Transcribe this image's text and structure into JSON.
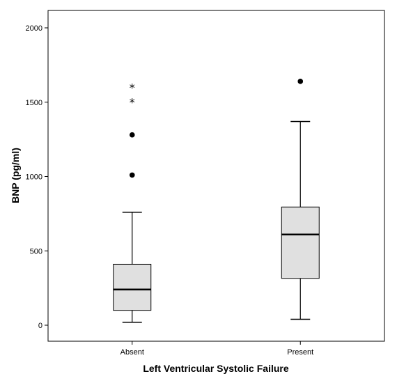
{
  "chart_data": {
    "type": "box",
    "xlabel": "Left Ventricular Systolic Failure",
    "ylabel": "BNP (pg/ml)",
    "ylim": [
      -120,
      2125
    ],
    "yticks": [
      0,
      500,
      1000,
      1500,
      2000
    ],
    "grid": false,
    "categories": [
      "Absent",
      "Present"
    ],
    "boxes": [
      {
        "category": "Absent",
        "whisker_low": 20,
        "q1": 100,
        "median": 240,
        "q3": 410,
        "whisker_high": 760,
        "outliers": [
          1010,
          1280
        ],
        "extremes": [
          1510,
          1610
        ]
      },
      {
        "category": "Present",
        "whisker_low": 40,
        "q1": 315,
        "median": 610,
        "q3": 795,
        "whisker_high": 1370,
        "outliers": [
          1640
        ],
        "extremes": []
      }
    ],
    "colors": {
      "box_fill": "#e0e0e0",
      "stroke": "#000000"
    }
  }
}
